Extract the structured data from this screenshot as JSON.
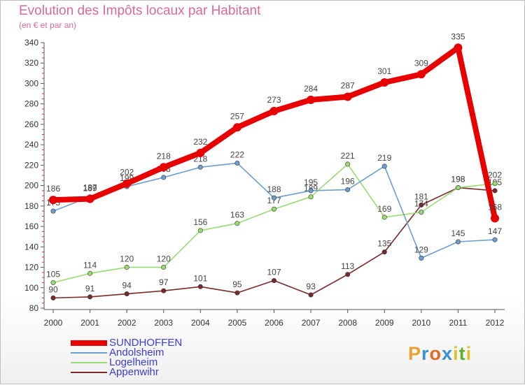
{
  "header": {
    "title": "Evolution des Impôts locaux par Habitant",
    "subtitle": "(en € et par an)"
  },
  "brand": {
    "letters": [
      "P",
      "r",
      "o",
      "x",
      "i",
      "t",
      "i"
    ],
    "colors": [
      "#f0a030",
      "#3a8fd0",
      "#e06a20",
      "#3a8fd0",
      "#e0c020",
      "#60b030",
      "#e0c020"
    ]
  },
  "chart_data": {
    "type": "line",
    "x": [
      "2000",
      "2001",
      "2002",
      "2003",
      "2004",
      "2005",
      "2006",
      "2007",
      "2008",
      "2009",
      "2010",
      "2011",
      "2012"
    ],
    "ylim": [
      80,
      340
    ],
    "yticks": [
      80,
      100,
      120,
      140,
      160,
      180,
      200,
      220,
      240,
      260,
      280,
      300,
      320,
      340
    ],
    "grid": false,
    "legend_position": "bottom-left",
    "series": [
      {
        "name": "SUNDHOFFEN",
        "color": "#e80000",
        "values": [
          186,
          187,
          202,
          218,
          232,
          257,
          273,
          284,
          287,
          301,
          309,
          335,
          168
        ]
      },
      {
        "name": "Andolsheim",
        "color": "#6a9fd0",
        "values": [
          175,
          189,
          199,
          208,
          218,
          222,
          188,
          195,
          196,
          219,
          129,
          145,
          147
        ]
      },
      {
        "name": "Logelheim",
        "color": "#98dc70",
        "values": [
          105,
          114,
          120,
          120,
          156,
          163,
          177,
          189,
          221,
          169,
          174,
          198,
          202
        ]
      },
      {
        "name": "Appenwihr",
        "color": "#7a2a2a",
        "values": [
          90,
          91,
          94,
          97,
          101,
          95,
          107,
          93,
          113,
          135,
          181,
          198,
          195
        ]
      }
    ]
  }
}
